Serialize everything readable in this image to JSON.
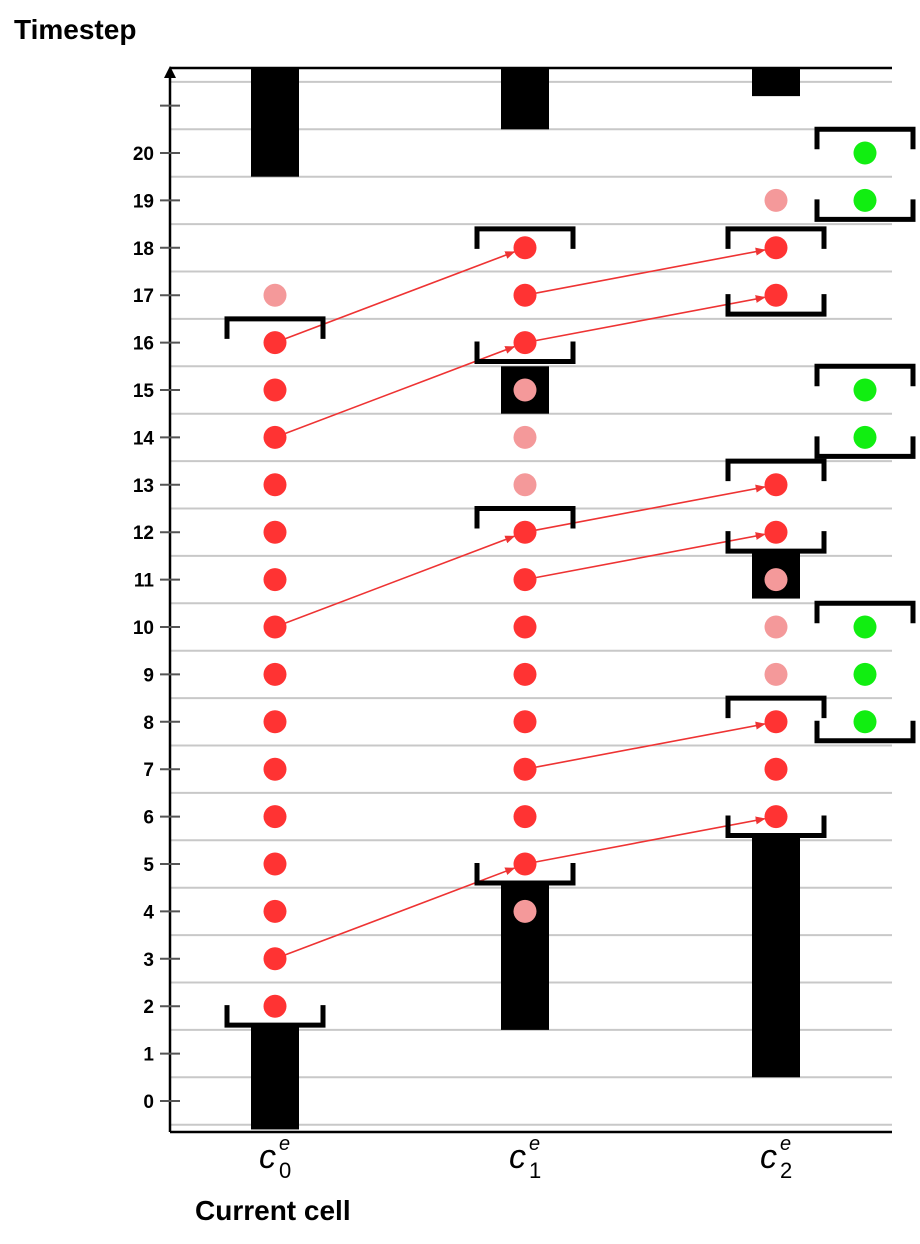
{
  "y_axis_title": "Timestep",
  "x_axis_title": "Current cell",
  "y_ticks": [
    "0",
    "1",
    "2",
    "3",
    "4",
    "5",
    "6",
    "7",
    "8",
    "9",
    "10",
    "11",
    "12",
    "13",
    "14",
    "15",
    "16",
    "17",
    "18",
    "19",
    "20"
  ],
  "columns": [
    {
      "base": "c",
      "sup": "e",
      "sub": "0"
    },
    {
      "base": "c",
      "sup": "e",
      "sub": "1"
    },
    {
      "base": "c",
      "sup": "e",
      "sub": "2"
    }
  ],
  "colors": {
    "active_dot": "#ff3333",
    "faded_dot": "#f4999a",
    "green_dot": "#11ee11",
    "bar": "#000000",
    "arrow": "#ee3333",
    "grid": "#c8c8c8"
  },
  "dots": [
    {
      "col": 0,
      "t": 2,
      "kind": "active"
    },
    {
      "col": 0,
      "t": 3,
      "kind": "active"
    },
    {
      "col": 0,
      "t": 4,
      "kind": "active"
    },
    {
      "col": 0,
      "t": 5,
      "kind": "active"
    },
    {
      "col": 0,
      "t": 6,
      "kind": "active"
    },
    {
      "col": 0,
      "t": 7,
      "kind": "active"
    },
    {
      "col": 0,
      "t": 8,
      "kind": "active"
    },
    {
      "col": 0,
      "t": 9,
      "kind": "active"
    },
    {
      "col": 0,
      "t": 10,
      "kind": "active"
    },
    {
      "col": 0,
      "t": 11,
      "kind": "active"
    },
    {
      "col": 0,
      "t": 12,
      "kind": "active"
    },
    {
      "col": 0,
      "t": 13,
      "kind": "active"
    },
    {
      "col": 0,
      "t": 14,
      "kind": "active"
    },
    {
      "col": 0,
      "t": 15,
      "kind": "active"
    },
    {
      "col": 0,
      "t": 16,
      "kind": "active"
    },
    {
      "col": 0,
      "t": 17,
      "kind": "faded"
    },
    {
      "col": 1,
      "t": 4,
      "kind": "faded"
    },
    {
      "col": 1,
      "t": 5,
      "kind": "active"
    },
    {
      "col": 1,
      "t": 6,
      "kind": "active"
    },
    {
      "col": 1,
      "t": 7,
      "kind": "active"
    },
    {
      "col": 1,
      "t": 8,
      "kind": "active"
    },
    {
      "col": 1,
      "t": 9,
      "kind": "active"
    },
    {
      "col": 1,
      "t": 10,
      "kind": "active"
    },
    {
      "col": 1,
      "t": 11,
      "kind": "active"
    },
    {
      "col": 1,
      "t": 12,
      "kind": "active"
    },
    {
      "col": 1,
      "t": 13,
      "kind": "faded"
    },
    {
      "col": 1,
      "t": 14,
      "kind": "faded"
    },
    {
      "col": 1,
      "t": 15,
      "kind": "faded"
    },
    {
      "col": 1,
      "t": 16,
      "kind": "active"
    },
    {
      "col": 1,
      "t": 17,
      "kind": "active"
    },
    {
      "col": 1,
      "t": 18,
      "kind": "active"
    },
    {
      "col": 2,
      "t": 6,
      "kind": "active"
    },
    {
      "col": 2,
      "t": 7,
      "kind": "active"
    },
    {
      "col": 2,
      "t": 8,
      "kind": "active"
    },
    {
      "col": 2,
      "t": 9,
      "kind": "faded"
    },
    {
      "col": 2,
      "t": 10,
      "kind": "faded"
    },
    {
      "col": 2,
      "t": 11,
      "kind": "faded"
    },
    {
      "col": 2,
      "t": 12,
      "kind": "active"
    },
    {
      "col": 2,
      "t": 13,
      "kind": "active"
    },
    {
      "col": 2,
      "t": 17,
      "kind": "active"
    },
    {
      "col": 2,
      "t": 18,
      "kind": "active"
    },
    {
      "col": 2,
      "t": 19,
      "kind": "faded"
    },
    {
      "col": 3,
      "t": 8,
      "kind": "green"
    },
    {
      "col": 3,
      "t": 9,
      "kind": "green"
    },
    {
      "col": 3,
      "t": 10,
      "kind": "green"
    },
    {
      "col": 3,
      "t": 14,
      "kind": "green"
    },
    {
      "col": 3,
      "t": 15,
      "kind": "green"
    },
    {
      "col": 3,
      "t": 19,
      "kind": "green"
    },
    {
      "col": 3,
      "t": 20,
      "kind": "green"
    }
  ],
  "bars": [
    {
      "col": 0,
      "from_t": -0.6,
      "to_t": 1.6
    },
    {
      "col": 0,
      "from_t": 19.5,
      "to_t": 21.8
    },
    {
      "col": 1,
      "from_t": 1.5,
      "to_t": 4.6
    },
    {
      "col": 1,
      "from_t": 14.5,
      "to_t": 15.5
    },
    {
      "col": 1,
      "from_t": 20.5,
      "to_t": 21.8
    },
    {
      "col": 2,
      "from_t": 0.5,
      "to_t": 5.6
    },
    {
      "col": 2,
      "from_t": 10.6,
      "to_t": 11.6
    },
    {
      "col": 2,
      "from_t": 21.2,
      "to_t": 21.8
    }
  ],
  "brackets": [
    {
      "col": 0,
      "t": 1.6,
      "open": "up"
    },
    {
      "col": 0,
      "t": 16.5,
      "open": "down"
    },
    {
      "col": 1,
      "t": 4.6,
      "open": "up"
    },
    {
      "col": 1,
      "t": 12.5,
      "open": "down"
    },
    {
      "col": 1,
      "t": 15.6,
      "open": "up"
    },
    {
      "col": 1,
      "t": 18.4,
      "open": "down"
    },
    {
      "col": 2,
      "t": 5.6,
      "open": "up"
    },
    {
      "col": 2,
      "t": 8.5,
      "open": "down"
    },
    {
      "col": 2,
      "t": 11.6,
      "open": "up"
    },
    {
      "col": 2,
      "t": 13.5,
      "open": "down"
    },
    {
      "col": 2,
      "t": 16.6,
      "open": "up"
    },
    {
      "col": 2,
      "t": 18.4,
      "open": "down"
    },
    {
      "col": 3,
      "t": 7.6,
      "open": "up"
    },
    {
      "col": 3,
      "t": 10.5,
      "open": "down"
    },
    {
      "col": 3,
      "t": 13.6,
      "open": "up"
    },
    {
      "col": 3,
      "t": 15.5,
      "open": "down"
    },
    {
      "col": 3,
      "t": 18.6,
      "open": "up"
    },
    {
      "col": 3,
      "t": 20.5,
      "open": "down"
    }
  ],
  "arrows": [
    {
      "from": [
        0,
        3
      ],
      "to": [
        1,
        5
      ]
    },
    {
      "from": [
        1,
        5
      ],
      "to": [
        2,
        6
      ]
    },
    {
      "from": [
        1,
        7
      ],
      "to": [
        2,
        8
      ]
    },
    {
      "from": [
        0,
        10
      ],
      "to": [
        1,
        12
      ]
    },
    {
      "from": [
        1,
        11
      ],
      "to": [
        2,
        12
      ]
    },
    {
      "from": [
        1,
        12
      ],
      "to": [
        2,
        13
      ]
    },
    {
      "from": [
        0,
        14
      ],
      "to": [
        1,
        16
      ]
    },
    {
      "from": [
        0,
        16
      ],
      "to": [
        1,
        18
      ]
    },
    {
      "from": [
        1,
        16
      ],
      "to": [
        2,
        17
      ]
    },
    {
      "from": [
        1,
        17
      ],
      "to": [
        2,
        18
      ]
    }
  ]
}
